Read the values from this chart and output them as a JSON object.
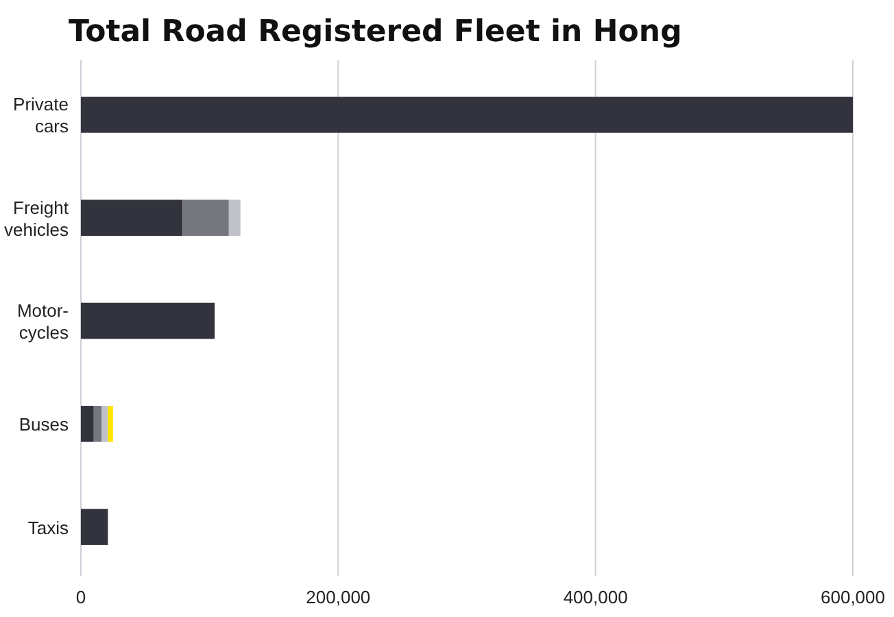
{
  "chart_data": {
    "type": "bar",
    "orientation": "horizontal",
    "stacked": true,
    "title": "Total Road Registered Fleet in Hong",
    "categories": [
      "Private cars",
      "Freight vehicles",
      "Motor-cycles",
      "Buses",
      "Taxis"
    ],
    "series": [
      {
        "color": "#33333d",
        "values": [
          600000,
          79000,
          104000,
          10000,
          21000
        ]
      },
      {
        "color": "#76767f",
        "values": [
          0,
          36000,
          0,
          6000,
          0
        ]
      },
      {
        "color": "#c0c0c8",
        "values": [
          0,
          9000,
          0,
          5000,
          0
        ]
      },
      {
        "color": "#ffe600",
        "values": [
          0,
          0,
          0,
          4000,
          0
        ]
      }
    ],
    "xlim": [
      0,
      600000
    ],
    "xticks": [
      0,
      {
        "value": 200000,
        "label": "200,000"
      },
      {
        "value": 400000,
        "label": "400,000"
      },
      {
        "value": 600000,
        "label": "600,000"
      }
    ],
    "grid": "x"
  }
}
